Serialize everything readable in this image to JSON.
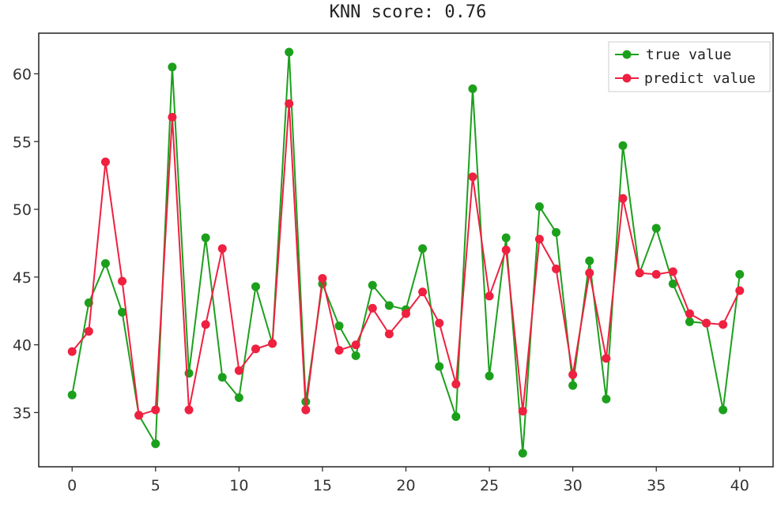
{
  "chart_data": {
    "type": "line",
    "title": "KNN score: 0.76",
    "xlabel": "",
    "ylabel": "",
    "xlim": [
      -2,
      42
    ],
    "ylim": [
      31,
      63
    ],
    "xticks": [
      0,
      5,
      10,
      15,
      20,
      25,
      30,
      35,
      40
    ],
    "yticks": [
      35,
      40,
      45,
      50,
      55,
      60
    ],
    "grid": false,
    "legend_position": "top-right",
    "x": [
      0,
      1,
      2,
      3,
      4,
      5,
      6,
      7,
      8,
      9,
      10,
      11,
      12,
      13,
      14,
      15,
      16,
      17,
      18,
      19,
      20,
      21,
      22,
      23,
      24,
      25,
      26,
      27,
      28,
      29,
      30,
      31,
      32,
      33,
      34,
      35,
      36,
      37,
      38,
      39,
      40
    ],
    "series": [
      {
        "name": "true value",
        "color": "#1ca01c",
        "values": [
          36.3,
          43.1,
          46.0,
          42.4,
          34.8,
          32.7,
          60.5,
          37.9,
          47.9,
          37.6,
          36.1,
          44.3,
          40.1,
          61.6,
          35.8,
          44.5,
          41.4,
          39.2,
          44.4,
          42.9,
          42.6,
          47.1,
          38.4,
          34.7,
          58.9,
          37.7,
          47.9,
          32.0,
          50.2,
          48.3,
          37.0,
          46.2,
          36.0,
          54.7,
          45.3,
          48.6,
          44.5,
          41.7,
          41.6,
          35.2,
          45.2
        ]
      },
      {
        "name": "predict value",
        "color": "#ef2040",
        "values": [
          39.5,
          41.0,
          53.5,
          44.7,
          34.8,
          35.2,
          56.8,
          35.2,
          41.5,
          47.1,
          38.1,
          39.7,
          40.1,
          57.8,
          35.2,
          44.9,
          39.6,
          40.0,
          42.7,
          40.8,
          42.3,
          43.9,
          41.6,
          37.1,
          52.4,
          43.6,
          47.0,
          35.1,
          47.8,
          45.6,
          37.8,
          45.3,
          39.0,
          50.8,
          45.3,
          45.2,
          45.4,
          42.3,
          41.6,
          41.5,
          44.0
        ]
      }
    ]
  }
}
